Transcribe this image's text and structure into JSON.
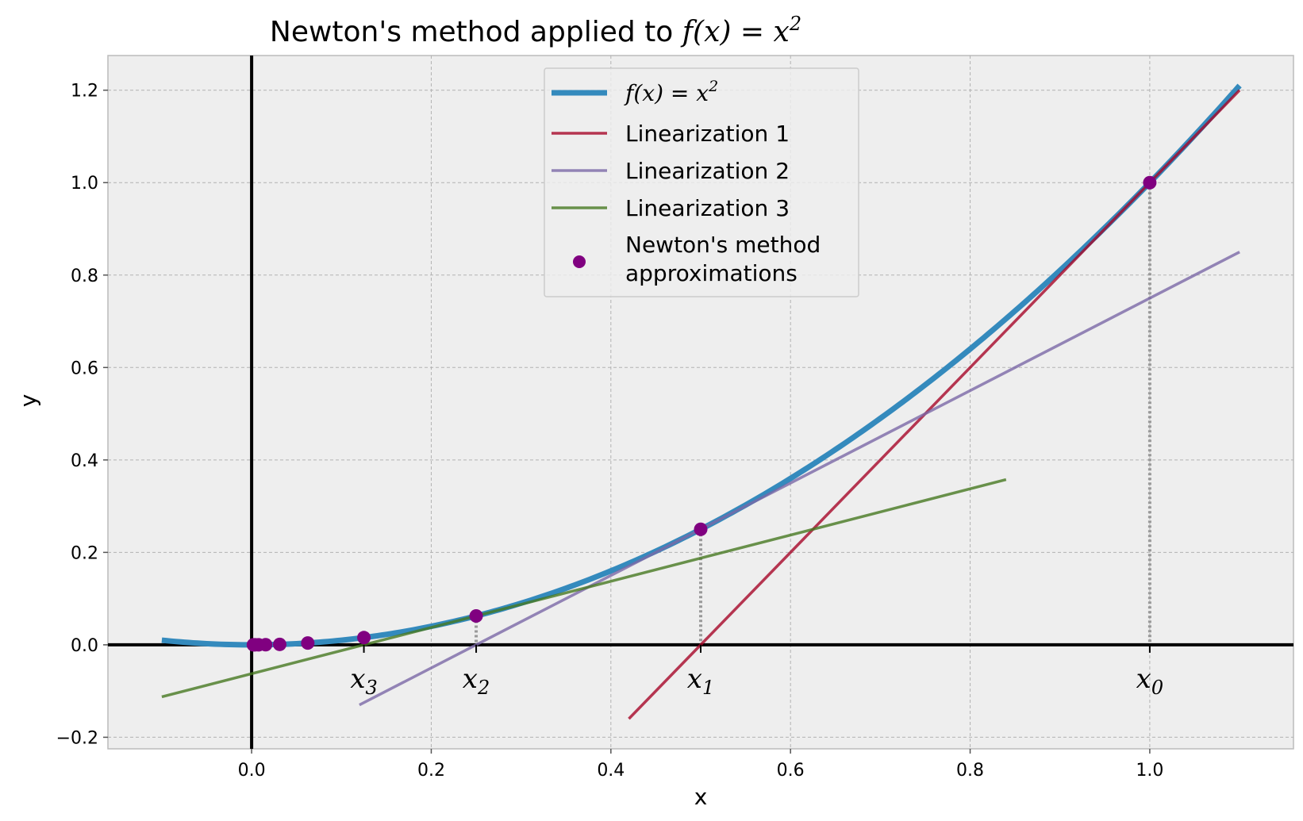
{
  "chart_data": {
    "type": "line",
    "title_prefix": "Newton's method applied to ",
    "title_math": "f(x) = x",
    "title_sup": "2",
    "xlabel": "x",
    "ylabel": "y",
    "xlim": [
      -0.16,
      1.16
    ],
    "ylim": [
      -0.225,
      1.275
    ],
    "xticks": [
      0.0,
      0.2,
      0.4,
      0.6,
      0.8,
      1.0
    ],
    "xtick_labels": [
      "0.0",
      "0.2",
      "0.4",
      "0.6",
      "0.8",
      "1.0"
    ],
    "yticks": [
      -0.2,
      0.0,
      0.2,
      0.4,
      0.6,
      0.8,
      1.0,
      1.2
    ],
    "ytick_labels": [
      "−0.2",
      "0.0",
      "0.2",
      "0.4",
      "0.6",
      "0.8",
      "1.0",
      "1.2"
    ],
    "grid": true,
    "legend_position": "upper-center",
    "curve": {
      "name_math": "f(x) = x",
      "name_sup": "2",
      "x_range": [
        -0.1,
        1.1
      ],
      "color": "#348abd"
    },
    "linearizations": [
      {
        "name": "Linearization 1",
        "x_start": 0.42,
        "x_end": 1.1,
        "slope": 2.0,
        "intercept": -1.0,
        "color": "#a60628"
      },
      {
        "name": "Linearization 2",
        "x_start": 0.12,
        "x_end": 1.1,
        "slope": 1.0,
        "intercept": -0.25,
        "color": "#7a68a6"
      },
      {
        "name": "Linearization 3",
        "x_start": -0.1,
        "x_end": 0.84,
        "slope": 0.5,
        "intercept": -0.0625,
        "color": "#467821"
      }
    ],
    "points": {
      "name_line1": "Newton's method",
      "name_line2": "approximations",
      "color": "#800080",
      "x": [
        1.0,
        0.5,
        0.25,
        0.125,
        0.0625,
        0.03125,
        0.015625,
        0.0078125,
        0.00390625,
        0.001953125
      ],
      "y": [
        1.0,
        0.25,
        0.0625,
        0.015625,
        0.00390625,
        0.0009765625,
        0.000244140625,
        6.103515625e-05,
        1.52587890625e-05,
        3.814697265625e-06
      ]
    },
    "iterate_labels": [
      {
        "x": 1.0,
        "base": "x",
        "sub": "0"
      },
      {
        "x": 0.5,
        "base": "x",
        "sub": "1"
      },
      {
        "x": 0.25,
        "base": "x",
        "sub": "2"
      },
      {
        "x": 0.125,
        "base": "x",
        "sub": "3"
      }
    ],
    "colors": {
      "plot_bg": "#eeeeee",
      "grid": "#b2b2b2",
      "axes_lines": "#000000",
      "dotted": "#999999"
    }
  }
}
